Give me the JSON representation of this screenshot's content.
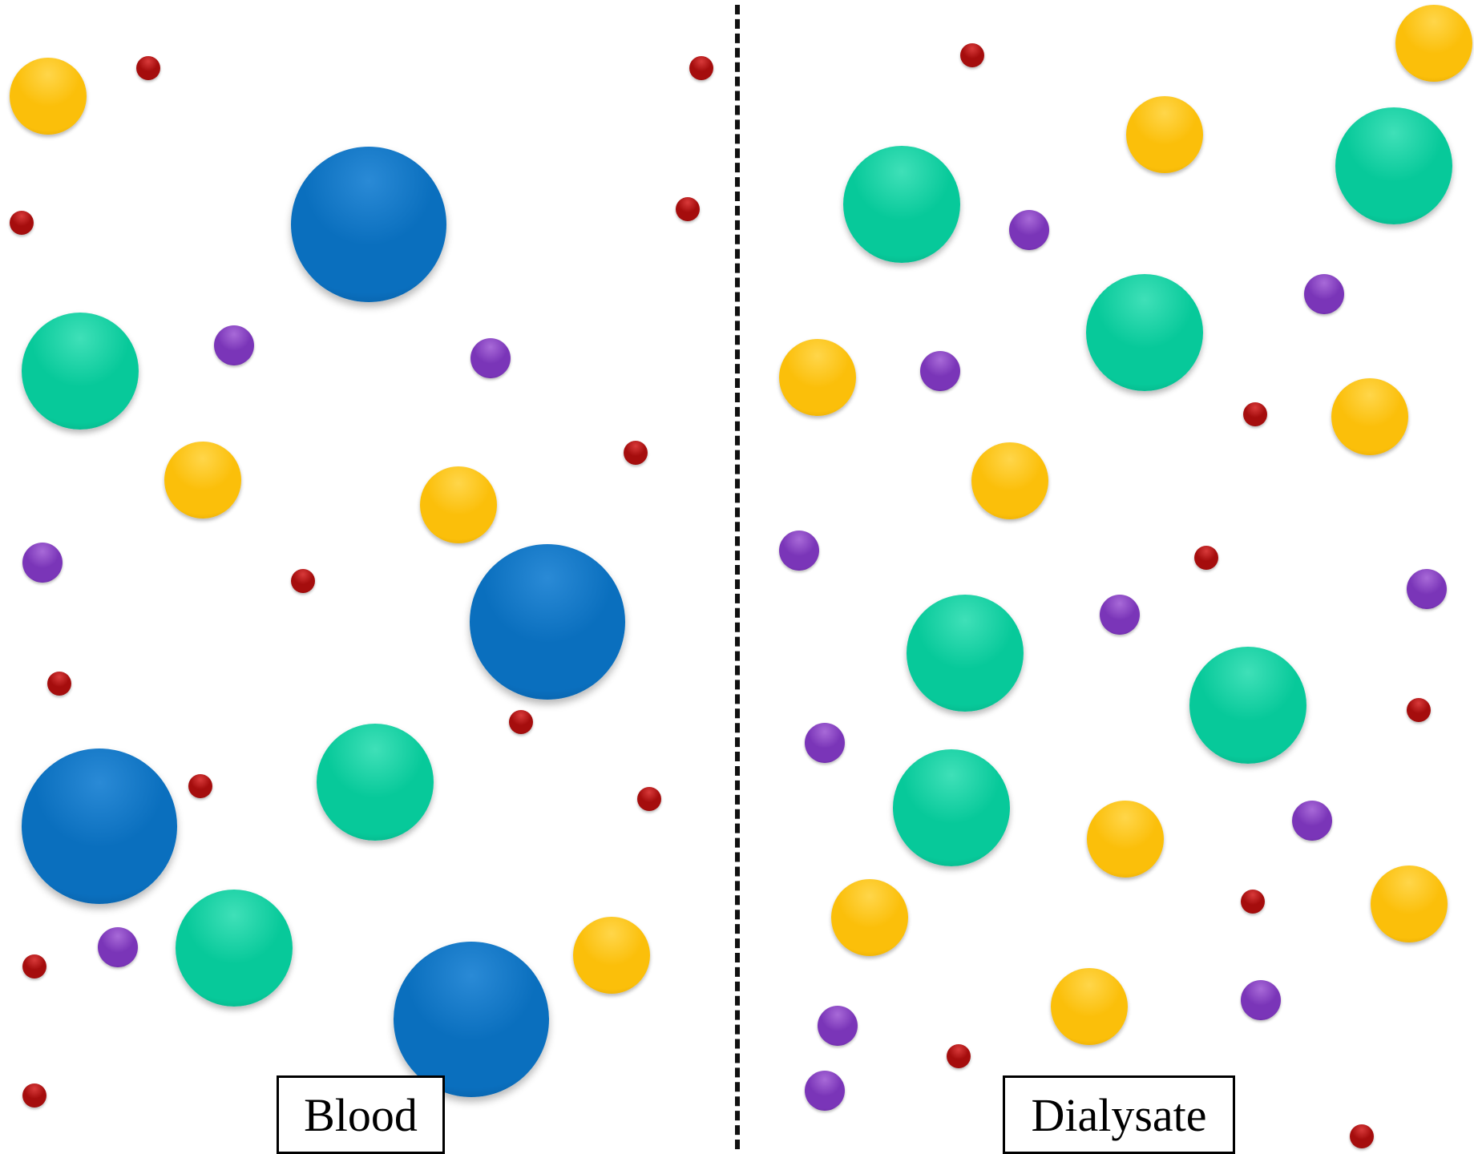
{
  "diagram": {
    "left_compartment_label": "Blood",
    "right_compartment_label": "Dialysate",
    "membrane_style": "dashed",
    "particle_types": {
      "blue": {
        "color": "#0a6fbe",
        "highlight": "#2a8ad6",
        "shadow": "#065596",
        "icon": "large-molecule-sphere"
      },
      "teal": {
        "color": "#07c99a",
        "highlight": "#3fe0b8",
        "shadow": "#05a17b",
        "icon": "medium-molecule-sphere"
      },
      "yellow": {
        "color": "#fbbf0a",
        "highlight": "#ffd64a",
        "shadow": "#d99c00",
        "icon": "solute-sphere"
      },
      "purple": {
        "color": "#7a35b8",
        "highlight": "#a86ad8",
        "shadow": "#5a2290",
        "icon": "small-solute-sphere"
      },
      "red": {
        "color": "#a50d0d",
        "highlight": "#d83a3a",
        "shadow": "#6e0505",
        "icon": "tiny-solute-sphere"
      }
    }
  }
}
